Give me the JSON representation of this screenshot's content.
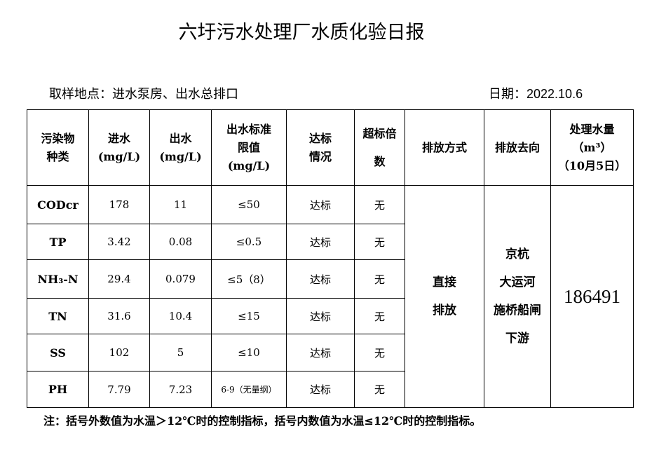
{
  "title": "六圩污水处理厂水质化验日报",
  "location": "取样地点：进水泵房、出水总排口",
  "date": "日期：2022.10.6",
  "headers": [
    "污染物种类",
    "进水(mg/L)",
    "出水(mg/L)",
    "出水标准限值(mg/L)",
    "达标情况",
    "超标倍数",
    "排放方式",
    "排放去向",
    "处理水量（m³）（10月5日）"
  ],
  "rows": [
    {
      "name": "CODcr",
      "in": "178",
      "out": "11",
      "limit": "≤50",
      "status": "达标",
      "over": "无"
    },
    {
      "name": "TP",
      "in": "3.42",
      "out": "0.08",
      "limit": "≤0.5",
      "status": "达标",
      "over": "无"
    },
    {
      "name": "NH₃-N",
      "in": "29.4",
      "out": "0.079",
      "limit": "≤5（8）",
      "status": "达标",
      "over": "无"
    },
    {
      "name": "TN",
      "in": "31.6",
      "out": "10.4",
      "limit": "≤15",
      "status": "达标",
      "over": "无"
    },
    {
      "name": "SS",
      "in": "102",
      "out": "5",
      "limit": "≤10",
      "status": "达标",
      "over": "无"
    },
    {
      "name": "PH",
      "in": "7.79",
      "out": "7.23",
      "limit": "6-9（无量纲）",
      "status": "达标",
      "over": "无"
    }
  ],
  "discharge_method": [
    "直接",
    "排放"
  ],
  "discharge_dest": [
    "京杭",
    "大运河",
    "施桥船闸",
    "下游"
  ],
  "volume": "186491",
  "note": "注：括号外数值为水温＞12℃时的控制指标，括号内数值为水温≤12℃时的控制指标。"
}
